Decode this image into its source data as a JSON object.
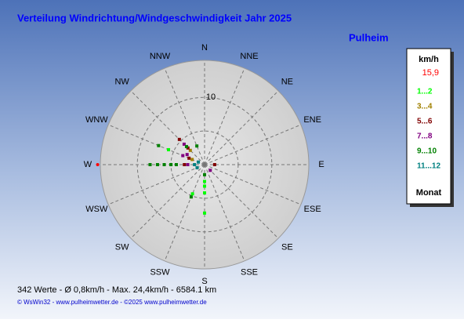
{
  "chart_data": {
    "type": "polar_scatter",
    "title": "Verteilung Windrichtung/Windgeschwindigkeit  Jahr 2025",
    "subtitle": "Pulheim",
    "direction_labels": [
      "N",
      "NNE",
      "NE",
      "ENE",
      "E",
      "ESE",
      "SE",
      "SSE",
      "S",
      "SSW",
      "SW",
      "WSW",
      "W",
      "WNW",
      "NW",
      "NNW"
    ],
    "rlim": [
      0,
      15.5
    ],
    "rgrid": [
      5,
      10
    ],
    "rticks": [
      10
    ],
    "legend_title": "km/h",
    "max": {
      "direction": 270,
      "value": 15.9,
      "label": "15,9",
      "color": "#ff0000"
    },
    "legend_footer": "Monat",
    "series": [
      {
        "name": "1...2",
        "color": "#00ff00",
        "directions": [
          292.5,
          180,
          180,
          180,
          202.5,
          180,
          270
        ],
        "values": [
          5.8,
          2.5,
          3.2,
          7.2,
          4.7,
          4.2,
          5
        ]
      },
      {
        "name": "3...4",
        "color": "#a08000",
        "directions": [
          315,
          292.5
        ],
        "values": [
          3,
          2
        ]
      },
      {
        "name": "5...6",
        "color": "#800000",
        "directions": [
          315,
          315,
          292.5,
          270,
          90
        ],
        "values": [
          5.3,
          3.5,
          2.5,
          3,
          1.5
        ]
      },
      {
        "name": "7...8",
        "color": "#800080",
        "directions": [
          315,
          300,
          292.5,
          270,
          135
        ],
        "values": [
          4.3,
          3,
          3.5,
          2.5,
          1.2
        ]
      },
      {
        "name": "9...10",
        "color": "#008000",
        "directions": [
          270,
          270,
          270,
          270,
          270,
          292.5,
          315,
          202.5,
          337.5,
          180
        ],
        "values": [
          8.1,
          7,
          6,
          5,
          4.2,
          7.4,
          3.8,
          5.2,
          3,
          1.5
        ]
      },
      {
        "name": "11...12",
        "color": "#008080",
        "directions": [
          270,
          247.5,
          292.5
        ],
        "values": [
          1.5,
          1.2,
          1
        ]
      }
    ],
    "notes": [
      "342 Werte   -   Ø 0,8km/h  -  Max. 24,4km/h   -   6584.1 km",
      "© WsWin32  -  www.pulheimwetter.de  -  ©2025 www.pulheimwetter.de"
    ]
  }
}
